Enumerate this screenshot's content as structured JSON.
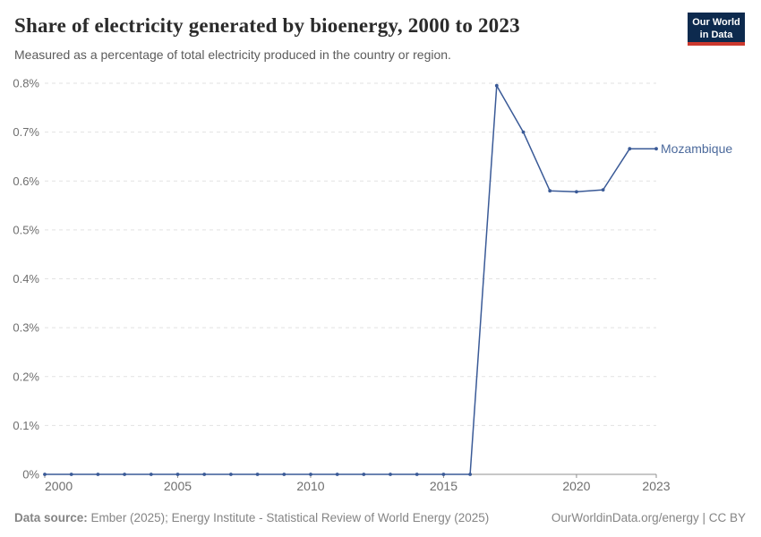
{
  "header": {
    "title": "Share of electricity generated by bioenergy, 2000 to 2023",
    "subtitle": "Measured as a percentage of total electricity produced in the country or region.",
    "logo_line1": "Our World",
    "logo_line2": "in Data",
    "logo_bg_color": "#0d2a4e",
    "logo_accent_color": "#cc392e"
  },
  "chart_data": {
    "type": "line",
    "title": "Share of electricity generated by bioenergy, 2000 to 2023",
    "xlabel": "",
    "ylabel": "",
    "xlim": [
      2000,
      2023
    ],
    "ylim": [
      0,
      0.8
    ],
    "y_unit": "%",
    "grid": "dashed-horizontal",
    "legend_position": "end-of-line",
    "x": [
      2000,
      2001,
      2002,
      2003,
      2004,
      2005,
      2006,
      2007,
      2008,
      2009,
      2010,
      2011,
      2012,
      2013,
      2014,
      2015,
      2016,
      2017,
      2018,
      2019,
      2020,
      2021,
      2022,
      2023
    ],
    "series": [
      {
        "name": "Mozambique",
        "color": "#3a5a97",
        "values": [
          0,
          0,
          0,
          0,
          0,
          0,
          0,
          0,
          0,
          0,
          0,
          0,
          0,
          0,
          0,
          0,
          0,
          0.795,
          0.7,
          0.58,
          0.578,
          0.582,
          0.666,
          0.666
        ]
      }
    ],
    "x_ticks": [
      {
        "v": 2000,
        "label": "2000"
      },
      {
        "v": 2005,
        "label": "2005"
      },
      {
        "v": 2010,
        "label": "2010"
      },
      {
        "v": 2015,
        "label": "2015"
      },
      {
        "v": 2020,
        "label": "2020"
      },
      {
        "v": 2023,
        "label": "2023"
      }
    ],
    "y_ticks": [
      {
        "v": 0,
        "label": "0%"
      },
      {
        "v": 0.1,
        "label": "0.1%"
      },
      {
        "v": 0.2,
        "label": "0.2%"
      },
      {
        "v": 0.3,
        "label": "0.3%"
      },
      {
        "v": 0.4,
        "label": "0.4%"
      },
      {
        "v": 0.5,
        "label": "0.5%"
      },
      {
        "v": 0.6,
        "label": "0.6%"
      },
      {
        "v": 0.7,
        "label": "0.7%"
      },
      {
        "v": 0.8,
        "label": "0.8%"
      }
    ],
    "colors": {
      "grid_line": "#e2e2e2",
      "axis_line": "#8f8f8f",
      "tick_text": "#6e6e6e"
    }
  },
  "footer": {
    "datasource_label": "Data source:",
    "datasource_text": "Ember (2025); Energy Institute - Statistical Review of World Energy (2025)",
    "right_text": "OurWorldinData.org/energy | CC BY"
  }
}
